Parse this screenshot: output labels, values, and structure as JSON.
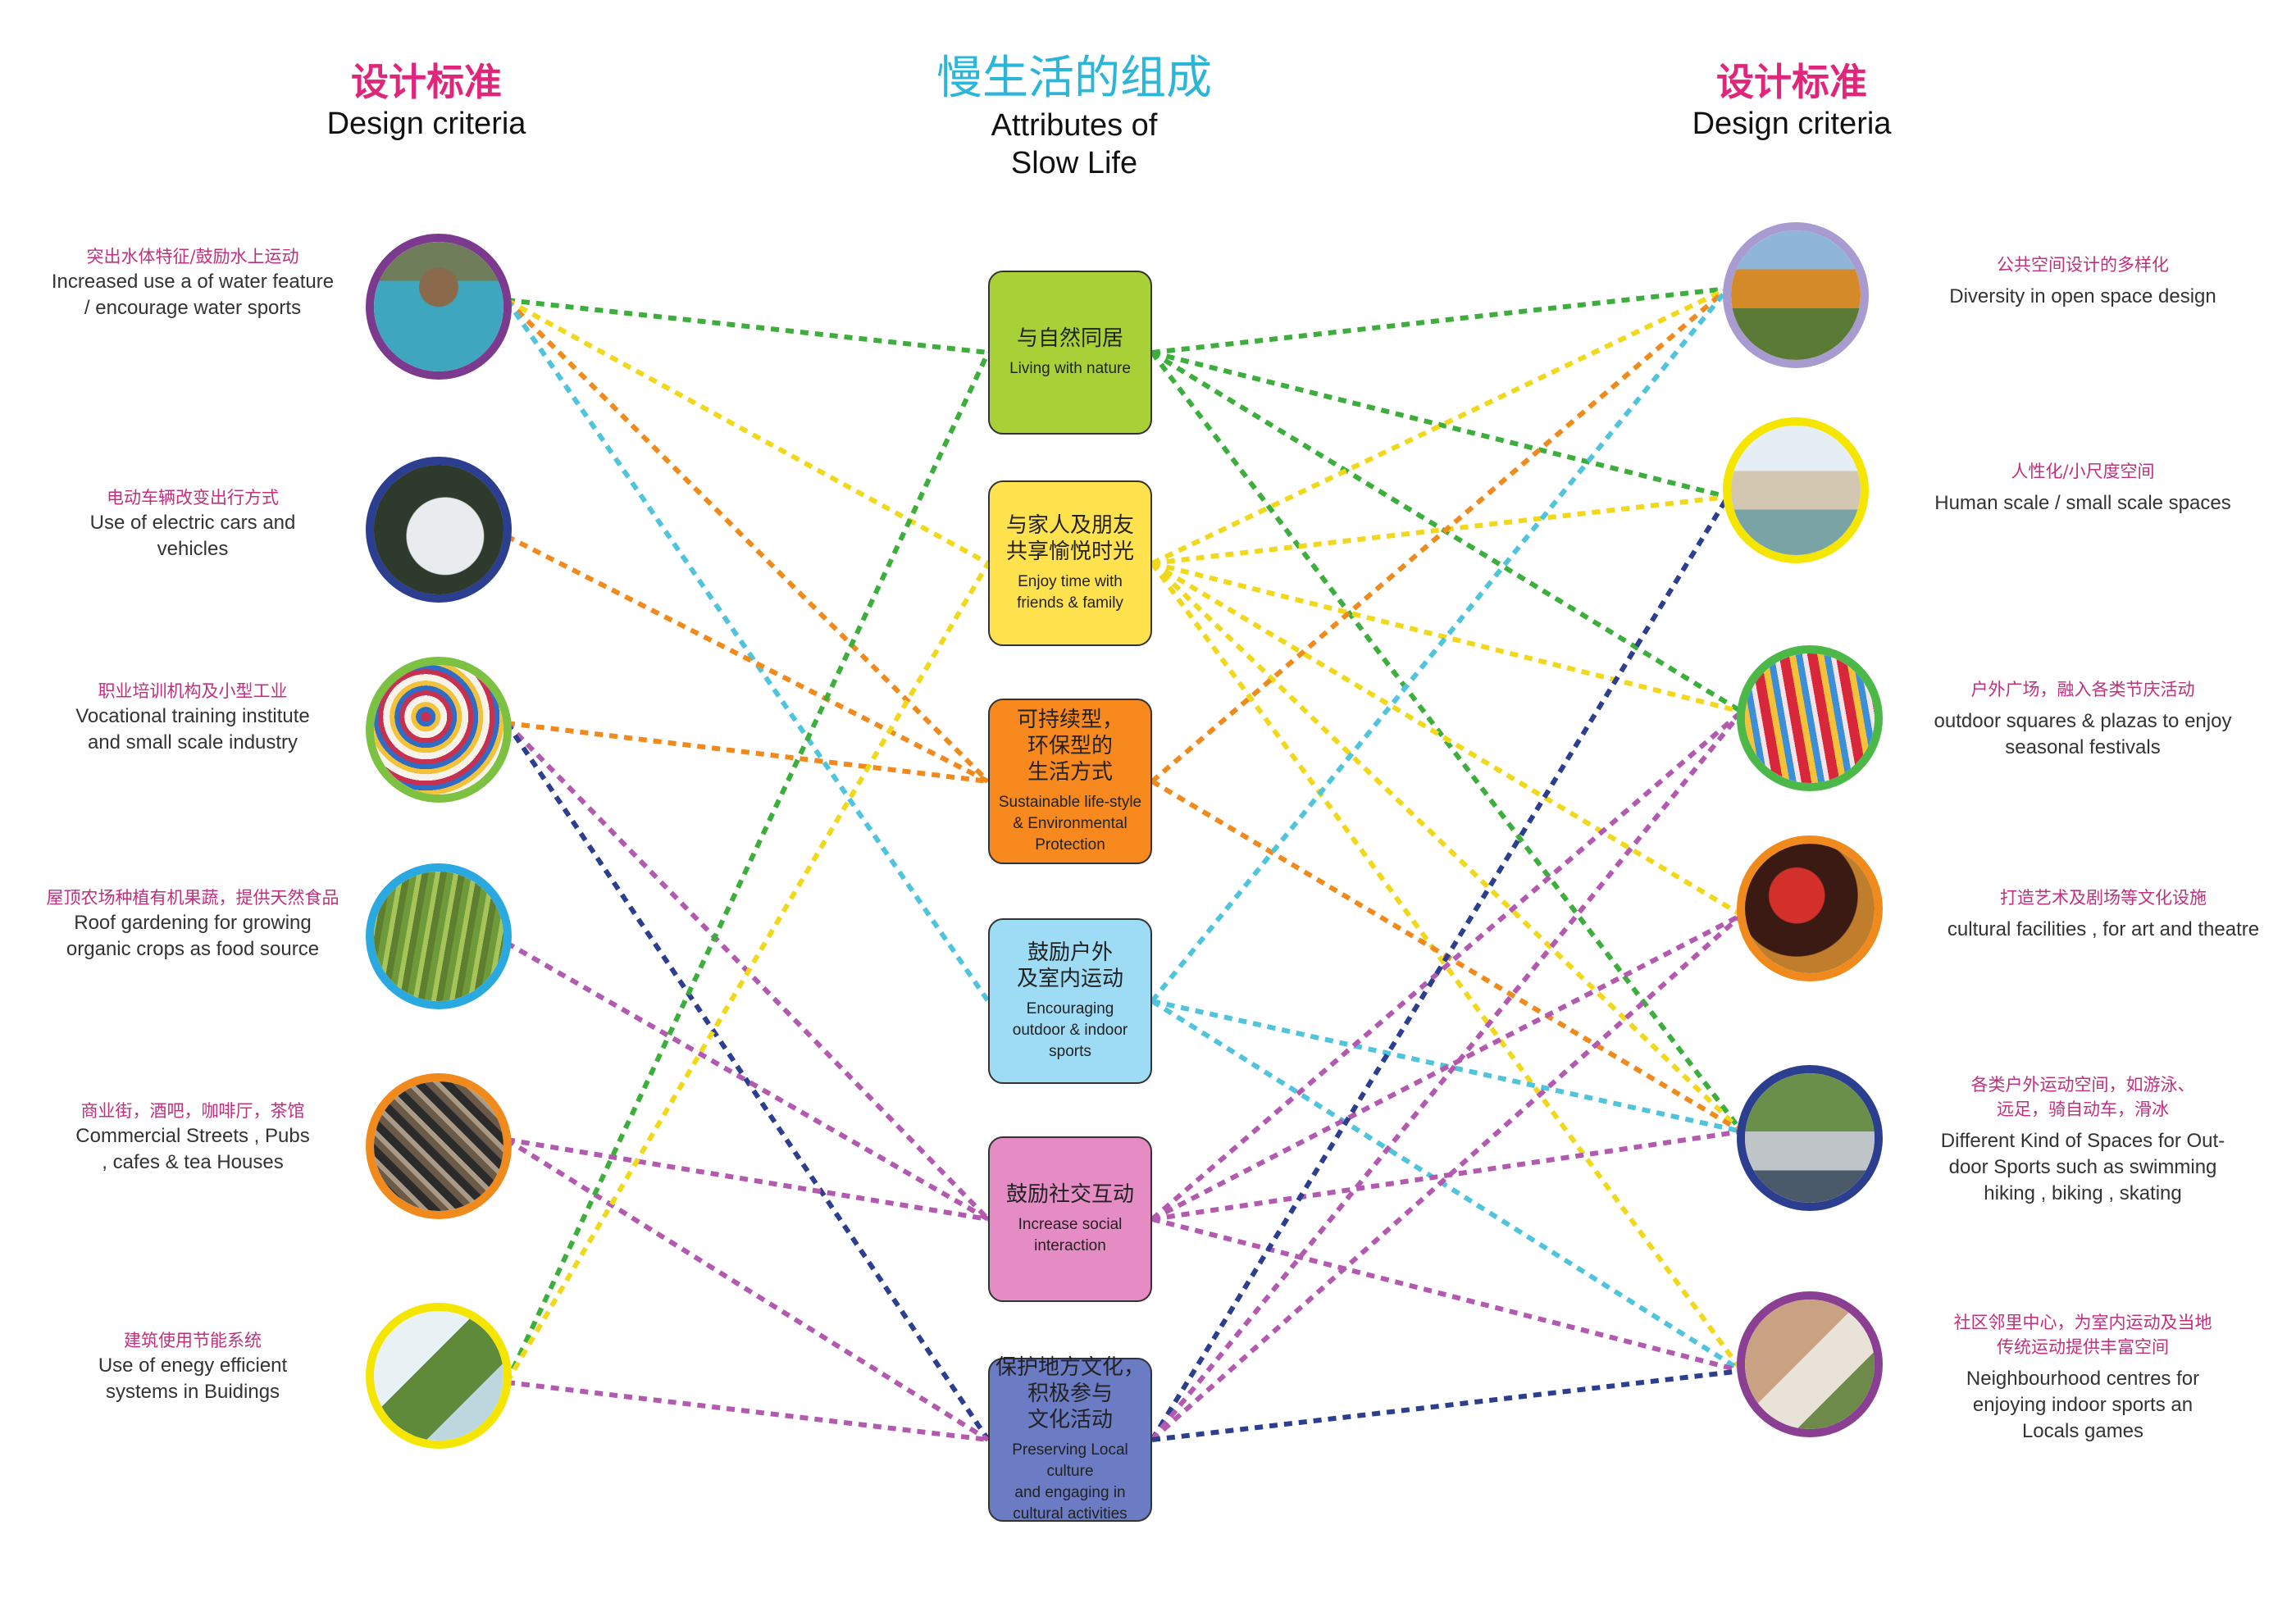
{
  "header": {
    "left": {
      "zh": "设计标准",
      "en": "Design criteria"
    },
    "center": {
      "zh": "慢生活的组成",
      "en_line1": "Attributes of",
      "en_line2": "Slow Life"
    },
    "right": {
      "zh": "设计标准",
      "en": "Design criteria"
    }
  },
  "left_criteria": [
    {
      "zh": "突出水体特征/鼓励水上运动",
      "en": [
        "Increased use  a  of water feature",
        "/ encourage water sports"
      ],
      "ring": "#7c3a8f",
      "icon": "swimming-pool-photo"
    },
    {
      "zh": "电动车辆改变出行方式",
      "en": [
        "Use of electric cars and",
        "vehicles"
      ],
      "ring": "#2c3e8f",
      "icon": "electric-car-photo"
    },
    {
      "zh": "职业培训机构及小型工业",
      "en": [
        "Vocational training institute",
        "and small scale industry"
      ],
      "ring": "#7dc142",
      "icon": "embroidery-photo"
    },
    {
      "zh": "屋顶农场种植有机果蔬，提供天然食品",
      "en": [
        "Roof gardening for growing",
        "organic crops as food source"
      ],
      "ring": "#2aa9e0",
      "icon": "roof-garden-photo"
    },
    {
      "zh": "商业街，酒吧，咖啡厅，茶馆",
      "en": [
        "Commercial Streets ,  Pubs",
        ", cafes & tea Houses"
      ],
      "ring": "#f08a1c",
      "icon": "street-market-photo"
    },
    {
      "zh": "建筑使用节能系统",
      "en": [
        "Use of enegy efficient",
        "systems in Buidings"
      ],
      "ring": "#f4e600",
      "icon": "green-building-photo"
    }
  ],
  "right_criteria": [
    {
      "zh": "公共空间设计的多样化",
      "en": [
        "Diversity in open space design"
      ],
      "ring": "#a79bd0",
      "icon": "lake-park-photo"
    },
    {
      "zh": "人性化/小尺度空间",
      "en": [
        "Human scale / small scale spaces"
      ],
      "ring": "#f4e600",
      "icon": "town-square-photo"
    },
    {
      "zh": "户外广场，融入各类节庆活动",
      "en": [
        "outdoor squares  & plazas to enjoy",
        "seasonal festivals"
      ],
      "ring": "#4cb848",
      "icon": "festival-photo"
    },
    {
      "zh": "打造艺术及剧场等文化设施",
      "en": [
        "cultural facilities , for art and theatre"
      ],
      "ring": "#f08a1c",
      "icon": "opera-photo"
    },
    {
      "zh": "各类户外运动空间，如游泳、远足，骑自动车，滑冰",
      "zh_lines": [
        "各类户外运动空间，如游泳、",
        "远足，骑自动车，滑冰"
      ],
      "en": [
        "Different Kind of Spaces for Out-",
        "door Sports such as swimming",
        "hiking , biking , skating"
      ],
      "ring": "#2c3e8f",
      "icon": "cycling-photo"
    },
    {
      "zh": "社区邻里中心，为室内运动及当地传统运动提供丰富空间",
      "zh_lines": [
        "社区邻里中心，为室内运动及当地",
        "传统运动提供丰富空间"
      ],
      "en": [
        "Neighbourhood centres for",
        "enjoying indoor sports an",
        "Locals games"
      ],
      "ring": "#8b3f93",
      "icon": "community-photo"
    }
  ],
  "attributes": [
    {
      "zh": [
        "与自然同居"
      ],
      "en": [
        "Living with nature"
      ],
      "color": "#a8d137"
    },
    {
      "zh": [
        "与家人及朋友",
        "共享愉悦时光"
      ],
      "en": [
        "Enjoy time with",
        "friends & family"
      ],
      "color": "#ffe24d"
    },
    {
      "zh": [
        "可持续型，",
        "环保型的",
        "生活方式"
      ],
      "en": [
        "Sustainable life-style",
        "& Environmental",
        "Protection"
      ],
      "color": "#f7891e"
    },
    {
      "zh": [
        "鼓励户外",
        "及室内运动"
      ],
      "en": [
        "Encouraging",
        "outdoor  & indoor",
        "sports"
      ],
      "color": "#9ddcf4"
    },
    {
      "zh": [
        "鼓励社交互动"
      ],
      "en": [
        "Increase social",
        "interaction"
      ],
      "color": "#e58cc4"
    },
    {
      "zh": [
        "保护地方文化，",
        "积极参与",
        "文化活动"
      ],
      "en": [
        "Preserving Local culture",
        "and engaging in",
        "cultural activities"
      ],
      "color": "#6b7bc4"
    }
  ],
  "connections": [
    {
      "from": "L0",
      "to": "A0",
      "color": "#3cae3c"
    },
    {
      "from": "L0",
      "to": "A1",
      "color": "#f1d81a"
    },
    {
      "from": "L0",
      "to": "A2",
      "color": "#f08a1c"
    },
    {
      "from": "L0",
      "to": "A3",
      "color": "#4fc4dc"
    },
    {
      "from": "L1",
      "to": "A2",
      "color": "#f08a1c"
    },
    {
      "from": "L2",
      "to": "A2",
      "color": "#f08a1c"
    },
    {
      "from": "L2",
      "to": "A4",
      "color": "#b35ab0"
    },
    {
      "from": "L2",
      "to": "A5",
      "color": "#2c3e8f"
    },
    {
      "from": "L3",
      "to": "A4",
      "color": "#b35ab0"
    },
    {
      "from": "L4",
      "to": "A4",
      "color": "#b35ab0"
    },
    {
      "from": "L4",
      "to": "A5",
      "color": "#b35ab0"
    },
    {
      "from": "L5",
      "to": "A0",
      "color": "#3cae3c"
    },
    {
      "from": "L5",
      "to": "A1",
      "color": "#f1d81a"
    },
    {
      "from": "L5",
      "to": "A5",
      "color": "#b35ab0"
    },
    {
      "from": "A0",
      "to": "R0",
      "color": "#3cae3c"
    },
    {
      "from": "A0",
      "to": "R1",
      "color": "#3cae3c"
    },
    {
      "from": "A0",
      "to": "R2",
      "color": "#3cae3c"
    },
    {
      "from": "A0",
      "to": "R4",
      "color": "#3cae3c"
    },
    {
      "from": "A1",
      "to": "R0",
      "color": "#f1d81a"
    },
    {
      "from": "A1",
      "to": "R1",
      "color": "#f1d81a"
    },
    {
      "from": "A1",
      "to": "R2",
      "color": "#f1d81a"
    },
    {
      "from": "A1",
      "to": "R3",
      "color": "#f1d81a"
    },
    {
      "from": "A1",
      "to": "R4",
      "color": "#f1d81a"
    },
    {
      "from": "A1",
      "to": "R5",
      "color": "#f1d81a"
    },
    {
      "from": "A2",
      "to": "R0",
      "color": "#f08a1c"
    },
    {
      "from": "A2",
      "to": "R4",
      "color": "#f08a1c"
    },
    {
      "from": "A3",
      "to": "R0",
      "color": "#4fc4dc"
    },
    {
      "from": "A3",
      "to": "R4",
      "color": "#4fc4dc"
    },
    {
      "from": "A3",
      "to": "R5",
      "color": "#4fc4dc"
    },
    {
      "from": "A4",
      "to": "R2",
      "color": "#b35ab0"
    },
    {
      "from": "A4",
      "to": "R3",
      "color": "#b35ab0"
    },
    {
      "from": "A4",
      "to": "R4",
      "color": "#b35ab0"
    },
    {
      "from": "A4",
      "to": "R5",
      "color": "#b35ab0"
    },
    {
      "from": "A5",
      "to": "R1",
      "color": "#2c3e8f"
    },
    {
      "from": "A5",
      "to": "R2",
      "color": "#b35ab0"
    },
    {
      "from": "A5",
      "to": "R3",
      "color": "#b35ab0"
    },
    {
      "from": "A5",
      "to": "R5",
      "color": "#2c3e8f"
    }
  ]
}
